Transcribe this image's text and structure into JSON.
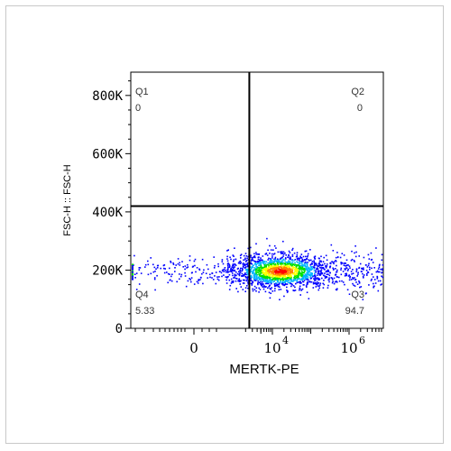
{
  "chart_data": {
    "type": "scatter",
    "plot_kind": "flow-cytometry-density-dot-plot",
    "xlabel": "MERTK-PE",
    "ylabel": "FSC-H :: FSC-H",
    "x_scale": "biexponential",
    "y_scale": "linear",
    "ylim": [
      0,
      880000
    ],
    "yticks": [
      {
        "value": 0,
        "label": "0"
      },
      {
        "value": 200000,
        "label": "200K"
      },
      {
        "value": 400000,
        "label": "400K"
      },
      {
        "value": 600000,
        "label": "600K"
      },
      {
        "value": 800000,
        "label": "800K"
      }
    ],
    "xticks": [
      {
        "value": 0,
        "label": "0",
        "sup": ""
      },
      {
        "value": 10000,
        "label": "10",
        "sup": "4"
      },
      {
        "value": 1000000,
        "label": "10",
        "sup": "6"
      }
    ],
    "gate": {
      "x": 2500,
      "y": 420000
    },
    "quadrants": [
      {
        "id": "Q1",
        "label": "Q1",
        "value": "0",
        "position": "top-left"
      },
      {
        "id": "Q2",
        "label": "Q2",
        "value": "0",
        "position": "top-right"
      },
      {
        "id": "Q3",
        "label": "Q3",
        "value": "94.7",
        "position": "bottom-right"
      },
      {
        "id": "Q4",
        "label": "Q4",
        "value": "5.33",
        "position": "bottom-left"
      }
    ],
    "population": {
      "main_cluster_center": {
        "x": 25000,
        "y": 180000
      },
      "density_colors": [
        "#0000ff",
        "#00b4ff",
        "#00e000",
        "#ffff00",
        "#ff8000",
        "#ff0000"
      ]
    },
    "grid": false,
    "legend": "none"
  }
}
